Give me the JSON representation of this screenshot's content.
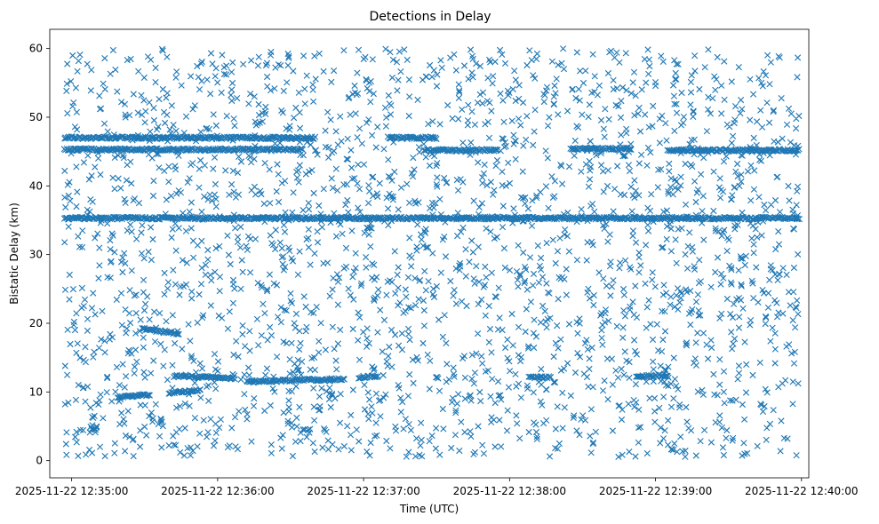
{
  "chart_data": {
    "type": "scatter",
    "title": "Detections in Delay",
    "xlabel": "Time (UTC)",
    "ylabel": "Bistatic Delay (km)",
    "xlim": [
      "2025-11-22 12:34:51",
      "2025-11-22 12:40:03"
    ],
    "ylim": [
      -2.5,
      62.8
    ],
    "x_ticks": [
      "2025-11-22 12:35:00",
      "2025-11-22 12:36:00",
      "2025-11-22 12:37:00",
      "2025-11-22 12:38:00",
      "2025-11-22 12:39:00",
      "2025-11-22 12:40:00"
    ],
    "y_ticks": [
      0,
      10,
      20,
      30,
      40,
      50,
      60
    ],
    "marker": "x",
    "marker_color": "#1f77b4",
    "grid": false,
    "legend": "none",
    "data_range": {
      "x": [
        "2025-11-22 12:34:57",
        "2025-11-22 12:39:59"
      ],
      "y": [
        0.5,
        60
      ]
    },
    "series": [
      {
        "kind": "tracks",
        "tracks": [
          {
            "x": [
              "2025-11-22 12:34:57",
              "2025-11-22 12:39:59"
            ],
            "y": [
              35.3,
              35.3
            ]
          },
          {
            "x": [
              "2025-11-22 12:34:57",
              "2025-11-22 12:36:40"
            ],
            "y": [
              47.0,
              47.0
            ]
          },
          {
            "x": [
              "2025-11-22 12:37:10",
              "2025-11-22 12:37:30"
            ],
            "y": [
              47.0,
              47.0
            ]
          },
          {
            "x": [
              "2025-11-22 12:34:57",
              "2025-11-22 12:36:35"
            ],
            "y": [
              45.3,
              45.3
            ]
          },
          {
            "x": [
              "2025-11-22 12:37:25",
              "2025-11-22 12:37:55"
            ],
            "y": [
              45.2,
              45.2
            ]
          },
          {
            "x": [
              "2025-11-22 12:38:25",
              "2025-11-22 12:38:50"
            ],
            "y": [
              45.4,
              45.4
            ]
          },
          {
            "x": [
              "2025-11-22 12:39:05",
              "2025-11-22 12:39:59"
            ],
            "y": [
              45.2,
              45.2
            ]
          },
          {
            "x": [
              "2025-11-22 12:35:29",
              "2025-11-22 12:35:44"
            ],
            "y": [
              19.2,
              18.5
            ]
          },
          {
            "x": [
              "2025-11-22 12:35:19",
              "2025-11-22 12:35:32"
            ],
            "y": [
              9.2,
              9.6
            ]
          },
          {
            "x": [
              "2025-11-22 12:35:40",
              "2025-11-22 12:35:53"
            ],
            "y": [
              9.9,
              10.3
            ]
          },
          {
            "x": [
              "2025-11-22 12:35:42",
              "2025-11-22 12:36:07"
            ],
            "y": [
              12.3,
              12.0
            ]
          },
          {
            "x": [
              "2025-11-22 12:36:12",
              "2025-11-22 12:36:52"
            ],
            "y": [
              11.5,
              11.9
            ]
          },
          {
            "x": [
              "2025-11-22 12:36:58",
              "2025-11-22 12:37:06"
            ],
            "y": [
              12.1,
              12.3
            ]
          },
          {
            "x": [
              "2025-11-22 12:38:08",
              "2025-11-22 12:38:17"
            ],
            "y": [
              12.1,
              12.1
            ]
          },
          {
            "x": [
              "2025-11-22 12:38:52",
              "2025-11-22 12:39:05"
            ],
            "y": [
              12.2,
              12.4
            ]
          }
        ]
      },
      {
        "kind": "background_clutter",
        "distribution": "uniform",
        "approx_count": 2400,
        "x": [
          "2025-11-22 12:34:57",
          "2025-11-22 12:39:59"
        ],
        "y": [
          0.5,
          60
        ]
      }
    ]
  }
}
